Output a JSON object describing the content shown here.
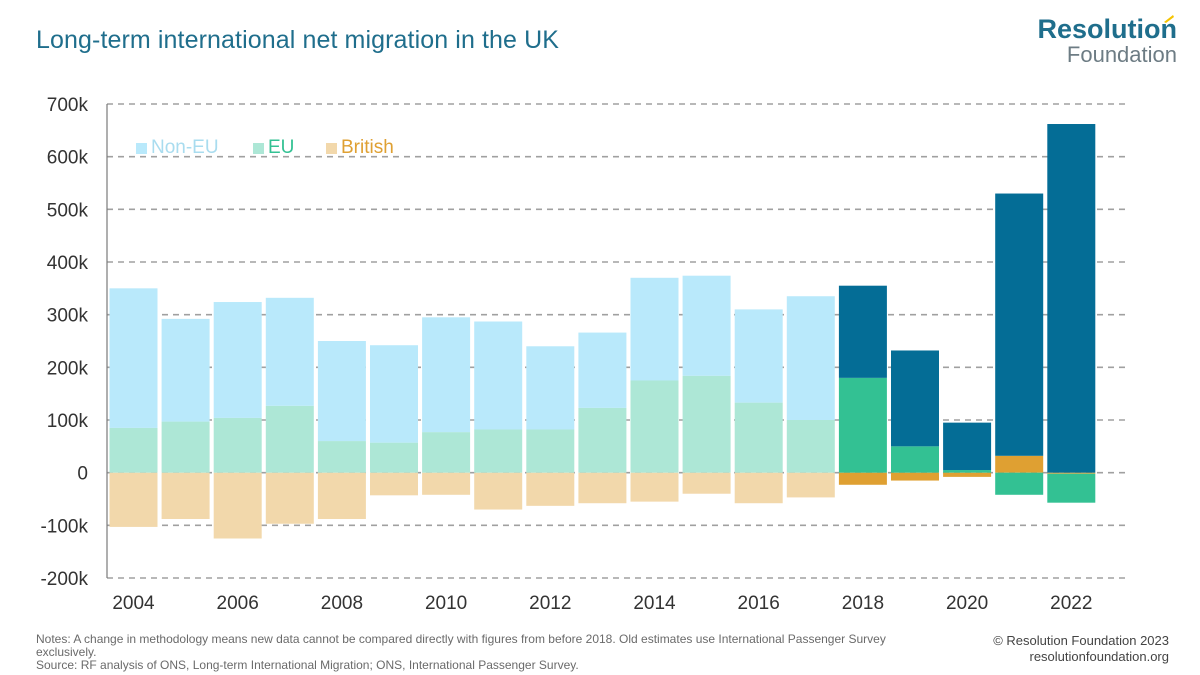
{
  "header": {
    "title": "Long-term international net migration in the UK",
    "logo_main": "Resolution",
    "logo_sub": "Foundation"
  },
  "footer": {
    "notes_line1": "Notes: A change in methodology means new data cannot be compared directly with figures from before 2018. Old estimates use International Passenger Survey exclusively.",
    "source": "Source: RF analysis of ONS, Long-term International Migration; ONS, International Passenger Survey.",
    "copyright": "© Resolution Foundation 2023",
    "website": "resolutionfoundation.org"
  },
  "colors": {
    "non_eu_old": "#b9e9fb",
    "eu_old": "#ade7d6",
    "british_old": "#f2d8ab",
    "non_eu_new": "#046d96",
    "eu_new": "#33c193",
    "british_new": "#dfa032",
    "grid": "#a0a0a0",
    "axis_text": "#333333"
  },
  "chart_data": {
    "type": "bar",
    "stacked": true,
    "categories": [
      "2004",
      "2005",
      "2006",
      "2007",
      "2008",
      "2009",
      "2010",
      "2011",
      "2012",
      "2013",
      "2014",
      "2015",
      "2016",
      "2017",
      "2018",
      "2019",
      "2020",
      "2021",
      "2022"
    ],
    "x_tick_labels": [
      "2004",
      "2006",
      "2008",
      "2010",
      "2012",
      "2014",
      "2016",
      "2018",
      "2020",
      "2022"
    ],
    "y_tick_labels": [
      "700k",
      "600k",
      "500k",
      "400k",
      "300k",
      "200k",
      "100k",
      "0",
      "-100k",
      "-200k"
    ],
    "ylim": [
      -200000,
      700000
    ],
    "ystep": 100000,
    "grid": "horizontal dashed",
    "legend_placement": "top-left",
    "methodology_change_from": "2018",
    "series": [
      {
        "name": "Non-EU",
        "values": [
          265000,
          195000,
          220000,
          205000,
          190000,
          185000,
          218000,
          205000,
          158000,
          143000,
          195000,
          190000,
          177000,
          235000,
          175000,
          182000,
          90000,
          498000,
          662000
        ]
      },
      {
        "name": "EU",
        "values": [
          85000,
          97000,
          104000,
          127000,
          60000,
          57000,
          77000,
          82000,
          82000,
          123000,
          175000,
          184000,
          133000,
          100000,
          180000,
          50000,
          5000,
          -42000,
          -55000
        ]
      },
      {
        "name": "British",
        "values": [
          -103000,
          -88000,
          -125000,
          -97000,
          -88000,
          -43000,
          -42000,
          -70000,
          -63000,
          -58000,
          -55000,
          -40000,
          -58000,
          -47000,
          -23000,
          -15000,
          -8000,
          32000,
          -2000
        ]
      }
    ]
  }
}
